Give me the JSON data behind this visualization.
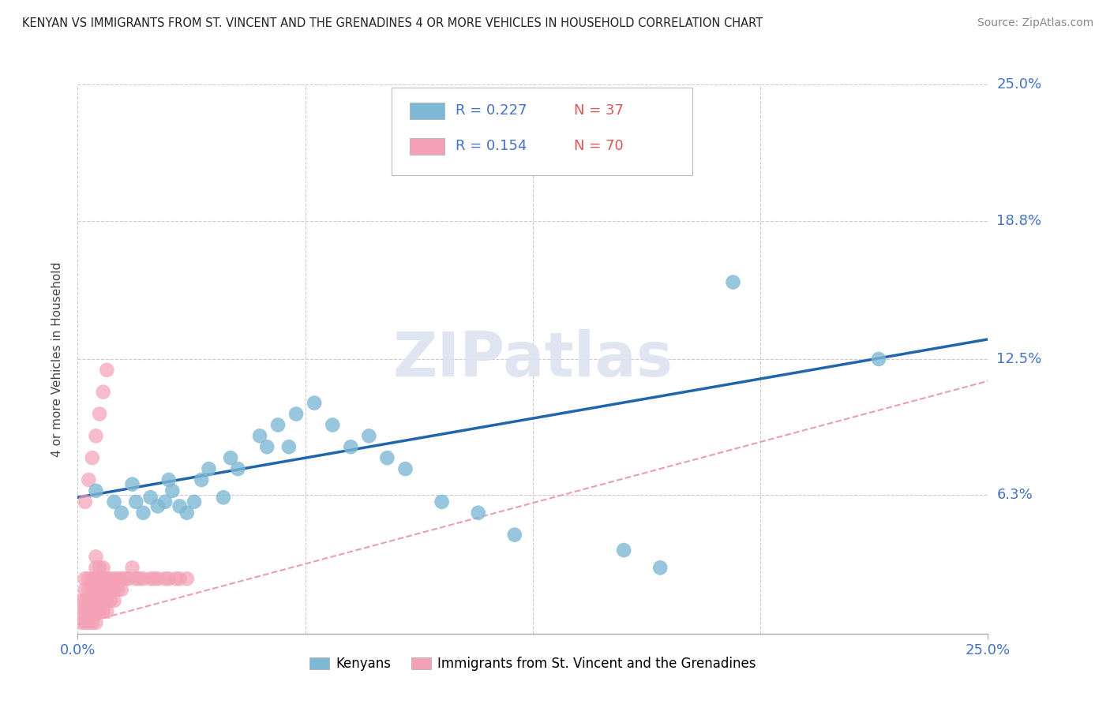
{
  "title": "KENYAN VS IMMIGRANTS FROM ST. VINCENT AND THE GRENADINES 4 OR MORE VEHICLES IN HOUSEHOLD CORRELATION CHART",
  "source": "Source: ZipAtlas.com",
  "ylabel": "4 or more Vehicles in Household",
  "xmin": 0.0,
  "xmax": 0.25,
  "ymin": 0.0,
  "ymax": 0.25,
  "ytick_values": [
    0.063,
    0.125,
    0.188,
    0.25
  ],
  "ytick_labels": [
    "6.3%",
    "12.5%",
    "18.8%",
    "25.0%"
  ],
  "xtick_values": [
    0.0,
    0.25
  ],
  "xtick_labels": [
    "0.0%",
    "25.0%"
  ],
  "kenyan_color": "#7eb8d4",
  "svg_color": "#f4a0b5",
  "trend_kenyan_color": "#2166ac",
  "trend_svg_color": "#e8a0b0",
  "R1": "0.227",
  "N1": "37",
  "R2": "0.154",
  "N2": "70",
  "r_color": "#4472c4",
  "n_color": "#e05555",
  "legend_label_1": "Kenyans",
  "legend_label_2": "Immigrants from St. Vincent and the Grenadines",
  "watermark": "ZIPatlas",
  "watermark_color": "#dde4f0",
  "trend_k_x0": 0.0,
  "trend_k_x1": 0.25,
  "trend_k_y0": 0.062,
  "trend_k_y1": 0.134,
  "trend_s_x0": 0.0,
  "trend_s_x1": 0.25,
  "trend_s_y0": 0.004,
  "trend_s_y1": 0.115,
  "kenyan_x": [
    0.005,
    0.01,
    0.012,
    0.015,
    0.016,
    0.018,
    0.02,
    0.022,
    0.024,
    0.025,
    0.026,
    0.028,
    0.03,
    0.032,
    0.034,
    0.036,
    0.04,
    0.042,
    0.044,
    0.05,
    0.052,
    0.055,
    0.058,
    0.06,
    0.065,
    0.07,
    0.075,
    0.08,
    0.085,
    0.09,
    0.1,
    0.11,
    0.12,
    0.15,
    0.16,
    0.18,
    0.22
  ],
  "kenyan_y": [
    0.065,
    0.06,
    0.055,
    0.068,
    0.06,
    0.055,
    0.062,
    0.058,
    0.06,
    0.07,
    0.065,
    0.058,
    0.055,
    0.06,
    0.07,
    0.075,
    0.062,
    0.08,
    0.075,
    0.09,
    0.085,
    0.095,
    0.085,
    0.1,
    0.105,
    0.095,
    0.085,
    0.09,
    0.08,
    0.075,
    0.06,
    0.055,
    0.045,
    0.038,
    0.03,
    0.16,
    0.125
  ],
  "svg_x": [
    0.001,
    0.001,
    0.001,
    0.002,
    0.002,
    0.002,
    0.002,
    0.002,
    0.003,
    0.003,
    0.003,
    0.003,
    0.003,
    0.004,
    0.004,
    0.004,
    0.004,
    0.004,
    0.005,
    0.005,
    0.005,
    0.005,
    0.005,
    0.005,
    0.005,
    0.006,
    0.006,
    0.006,
    0.006,
    0.006,
    0.007,
    0.007,
    0.007,
    0.007,
    0.007,
    0.008,
    0.008,
    0.008,
    0.008,
    0.009,
    0.009,
    0.009,
    0.01,
    0.01,
    0.01,
    0.011,
    0.011,
    0.012,
    0.012,
    0.013,
    0.014,
    0.015,
    0.016,
    0.017,
    0.018,
    0.02,
    0.021,
    0.022,
    0.024,
    0.025,
    0.027,
    0.028,
    0.03,
    0.002,
    0.003,
    0.004,
    0.005,
    0.006,
    0.007,
    0.008
  ],
  "svg_y": [
    0.005,
    0.01,
    0.015,
    0.005,
    0.01,
    0.015,
    0.02,
    0.025,
    0.005,
    0.01,
    0.015,
    0.02,
    0.025,
    0.005,
    0.01,
    0.015,
    0.02,
    0.025,
    0.005,
    0.01,
    0.015,
    0.02,
    0.025,
    0.03,
    0.035,
    0.01,
    0.015,
    0.02,
    0.025,
    0.03,
    0.01,
    0.015,
    0.02,
    0.025,
    0.03,
    0.01,
    0.015,
    0.02,
    0.025,
    0.015,
    0.02,
    0.025,
    0.015,
    0.02,
    0.025,
    0.02,
    0.025,
    0.02,
    0.025,
    0.025,
    0.025,
    0.03,
    0.025,
    0.025,
    0.025,
    0.025,
    0.025,
    0.025,
    0.025,
    0.025,
    0.025,
    0.025,
    0.025,
    0.06,
    0.07,
    0.08,
    0.09,
    0.1,
    0.11,
    0.12
  ]
}
